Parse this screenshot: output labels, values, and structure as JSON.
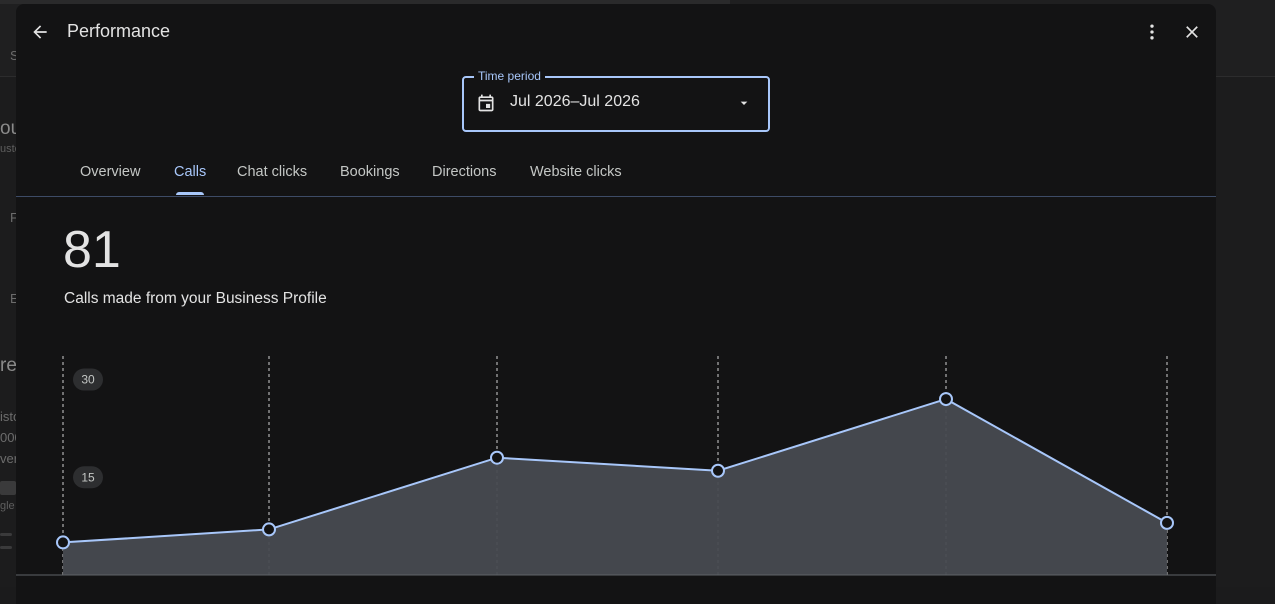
{
  "header": {
    "title": "Performance"
  },
  "time_period": {
    "label": "Time period",
    "value": "Jul 2026–Jul 2026"
  },
  "tabs": [
    {
      "label": "Overview",
      "active": false
    },
    {
      "label": "Calls",
      "active": true
    },
    {
      "label": "Chat clicks",
      "active": false
    },
    {
      "label": "Bookings",
      "active": false
    },
    {
      "label": "Directions",
      "active": false
    },
    {
      "label": "Website clicks",
      "active": false
    }
  ],
  "metric": {
    "value": "81",
    "description": "Calls made from your Business Profile"
  },
  "colors": {
    "accent": "#a8c7fa",
    "dialog_bg": "#131314",
    "area_fill": "#474a50"
  },
  "chart_data": {
    "type": "area",
    "y_ticks": [
      "30",
      "15"
    ],
    "ylim": [
      0,
      33
    ],
    "values": [
      5,
      7,
      18,
      16,
      27,
      8
    ],
    "grid": "vertical dashed lines at each point"
  }
}
